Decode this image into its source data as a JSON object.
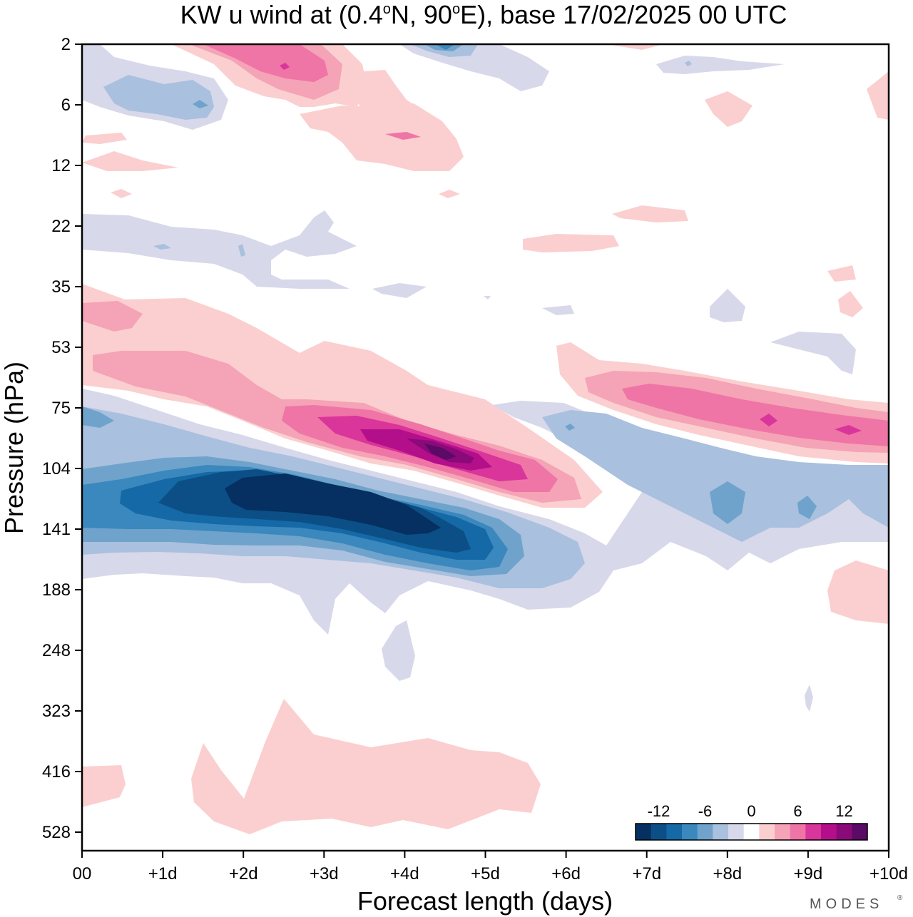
{
  "chart_data": {
    "type": "heatmap",
    "title": "KW u wind at (0.4°N, 90°E),  base 17/02/2025  00 UTC",
    "title_parts": {
      "pre": "KW u wind at (0.4",
      "deg": "o",
      "mid": "N, 90",
      "post": "E),  base 17/02/2025  00 UTC"
    },
    "xlabel": "Forecast length (days)",
    "ylabel": "Pressure (hPa)",
    "x_ticks": [
      "00",
      "+1d",
      "+2d",
      "+3d",
      "+4d",
      "+5d",
      "+6d",
      "+7d",
      "+8d",
      "+9d",
      "+10d"
    ],
    "xlim_days": [
      0,
      10
    ],
    "y_ticks": [
      "2",
      "6",
      "12",
      "22",
      "35",
      "53",
      "75",
      "104",
      "141",
      "188",
      "248",
      "323",
      "416",
      "528"
    ],
    "y_scale": "pressure levels (top = 2 hPa, bottom ~ 600 hPa)",
    "colorbar": {
      "tick_labels": [
        "-12",
        "-6",
        "0",
        "6",
        "12"
      ],
      "colors": [
        "#053061",
        "#0b4f86",
        "#1469a6",
        "#3a88bd",
        "#6fa3cb",
        "#a9c0de",
        "#d7d8ea",
        "#ffffff",
        "#fbcfcf",
        "#f5a3b6",
        "#ef75a6",
        "#d9359a",
        "#b40f8a",
        "#8a0a7a",
        "#5b0a66"
      ]
    },
    "features": [
      {
        "name": "easterly core 150-110 hPa",
        "x_days": [
          0.5,
          5.3
        ],
        "p_hPa": [
          170,
          100
        ],
        "min_value": -12
      },
      {
        "name": "westerly max ~95 hPa",
        "x_days": [
          2.5,
          6.5
        ],
        "p_hPa": [
          130,
          70
        ],
        "max_value": 14
      },
      {
        "name": "westerly band 70-90 hPa late",
        "x_days": [
          6.0,
          10.0
        ],
        "p_hPa": [
          100,
          55
        ],
        "max_value": 9
      },
      {
        "name": "westerly near 2-6 hPa",
        "x_days": [
          1.2,
          4.8
        ],
        "p_hPa": [
          2,
          12
        ],
        "max_value": 9
      },
      {
        "name": "weak westerly 400-520 hPa",
        "x_days": [
          1.5,
          5.7
        ],
        "p_hPa": [
          330,
          600
        ],
        "max_value": 2
      }
    ],
    "brand": "MODES"
  }
}
